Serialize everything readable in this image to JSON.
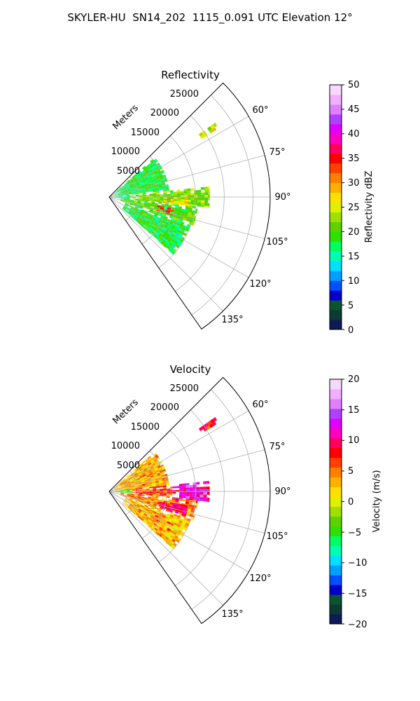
{
  "figure": {
    "title": "SKYLER-HU  SN14_202  1115_0.091 UTC Elevation 12°"
  },
  "chart_data": [
    {
      "type": "heatmap",
      "projection": "polar-sector (PPI)",
      "title": "Reflectivity",
      "radial_axis_label": "Meters",
      "radial_range": [
        0,
        28000
      ],
      "radial_ticks": [
        5000,
        10000,
        15000,
        20000,
        25000
      ],
      "radial_tick_labels": [
        "5000",
        "10000",
        "15000",
        "20000",
        "25000"
      ],
      "azimuth_range_deg": [
        45,
        145
      ],
      "azimuth_ticks_deg": [
        60,
        75,
        90,
        105,
        120,
        135
      ],
      "azimuth_tick_labels": [
        "60°",
        "75°",
        "90°",
        "105°",
        "120°",
        "135°"
      ],
      "grid": true,
      "colorbar": {
        "label": "Reflectivity dBZ",
        "range": [
          0,
          50
        ],
        "ticks": [
          0,
          5,
          10,
          15,
          20,
          25,
          30,
          35,
          40,
          45,
          50
        ],
        "tick_labels": [
          "0",
          "5",
          "10",
          "15",
          "20",
          "25",
          "30",
          "35",
          "40",
          "45",
          "50"
        ],
        "placement": "right",
        "colors": [
          "#0d1a55",
          "#0d3a33",
          "#0a5530",
          "#0000c8",
          "#0050ff",
          "#00a0ff",
          "#00e0ff",
          "#00ffb0",
          "#00ff60",
          "#30e000",
          "#60d000",
          "#a0e000",
          "#e0f000",
          "#ffe000",
          "#ffb000",
          "#ff8000",
          "#ff4000",
          "#ff0000",
          "#ff0060",
          "#ff00c0",
          "#e000ff",
          "#b040ff",
          "#e080ff",
          "#f0b0ff",
          "#f8d8ff"
        ]
      },
      "echo_regions": [
        {
          "az": [
            49,
            84
          ],
          "r": [
            1000,
            10500
          ],
          "value": 18
        },
        {
          "az": [
            84,
            96
          ],
          "r": [
            4000,
            17500
          ],
          "value": 22
        },
        {
          "az": [
            96,
            109
          ],
          "r": [
            2000,
            15500
          ],
          "value": 20
        },
        {
          "az": [
            109,
            132
          ],
          "r": [
            3000,
            15000
          ],
          "value": 18
        },
        {
          "az": [
            100,
            106
          ],
          "r": [
            8500,
            11500
          ],
          "value": 34
        },
        {
          "az": [
            90,
            97
          ],
          "r": [
            9500,
            14000
          ],
          "value": 27
        },
        {
          "az": [
            84,
            97
          ],
          "r": [
            0,
            4000
          ],
          "value": 15
        },
        {
          "az": [
            55,
            58
          ],
          "r": [
            19000,
            22500
          ],
          "value": 25
        }
      ]
    },
    {
      "type": "heatmap",
      "projection": "polar-sector (PPI)",
      "title": "Velocity",
      "radial_axis_label": "Meters",
      "radial_range": [
        0,
        28000
      ],
      "radial_ticks": [
        5000,
        10000,
        15000,
        20000,
        25000
      ],
      "radial_tick_labels": [
        "5000",
        "10000",
        "15000",
        "20000",
        "25000"
      ],
      "azimuth_range_deg": [
        45,
        145
      ],
      "azimuth_ticks_deg": [
        60,
        75,
        90,
        105,
        120,
        135
      ],
      "azimuth_tick_labels": [
        "60°",
        "75°",
        "90°",
        "105°",
        "120°",
        "135°"
      ],
      "grid": true,
      "colorbar": {
        "label": "Velocity (m/s)",
        "range": [
          -20,
          20
        ],
        "ticks": [
          -20,
          -15,
          -10,
          -5,
          0,
          5,
          10,
          15,
          20
        ],
        "tick_labels": [
          "−20",
          "−15",
          "−10",
          "−5",
          "0",
          "5",
          "10",
          "15",
          "20"
        ],
        "placement": "right",
        "colors": [
          "#0d1a55",
          "#0d3a33",
          "#0a5530",
          "#0000c8",
          "#0050ff",
          "#00a0ff",
          "#00e0ff",
          "#00ffb0",
          "#00ff60",
          "#30e000",
          "#60d000",
          "#a0e000",
          "#e0f000",
          "#ffe000",
          "#ffb000",
          "#ff8000",
          "#ff4000",
          "#ff0000",
          "#ff0060",
          "#ff00c0",
          "#e000ff",
          "#b040ff",
          "#e080ff",
          "#f0b0ff",
          "#f8d8ff"
        ]
      },
      "echo_regions": [
        {
          "az": [
            49,
            84
          ],
          "r": [
            1000,
            10500
          ],
          "value": 3
        },
        {
          "az": [
            84,
            96
          ],
          "r": [
            4000,
            11000
          ],
          "value": 6
        },
        {
          "az": [
            84,
            96
          ],
          "r": [
            11000,
            17500
          ],
          "value": 12
        },
        {
          "az": [
            96,
            109
          ],
          "r": [
            2000,
            15500
          ],
          "value": 5
        },
        {
          "az": [
            109,
            132
          ],
          "r": [
            3000,
            15000
          ],
          "value": 3
        },
        {
          "az": [
            100,
            108
          ],
          "r": [
            9000,
            14000
          ],
          "value": 10
        },
        {
          "az": [
            84,
            97
          ],
          "r": [
            0,
            4000
          ],
          "value": -4
        },
        {
          "az": [
            55,
            58
          ],
          "r": [
            19000,
            22500
          ],
          "value": 8
        }
      ]
    }
  ]
}
